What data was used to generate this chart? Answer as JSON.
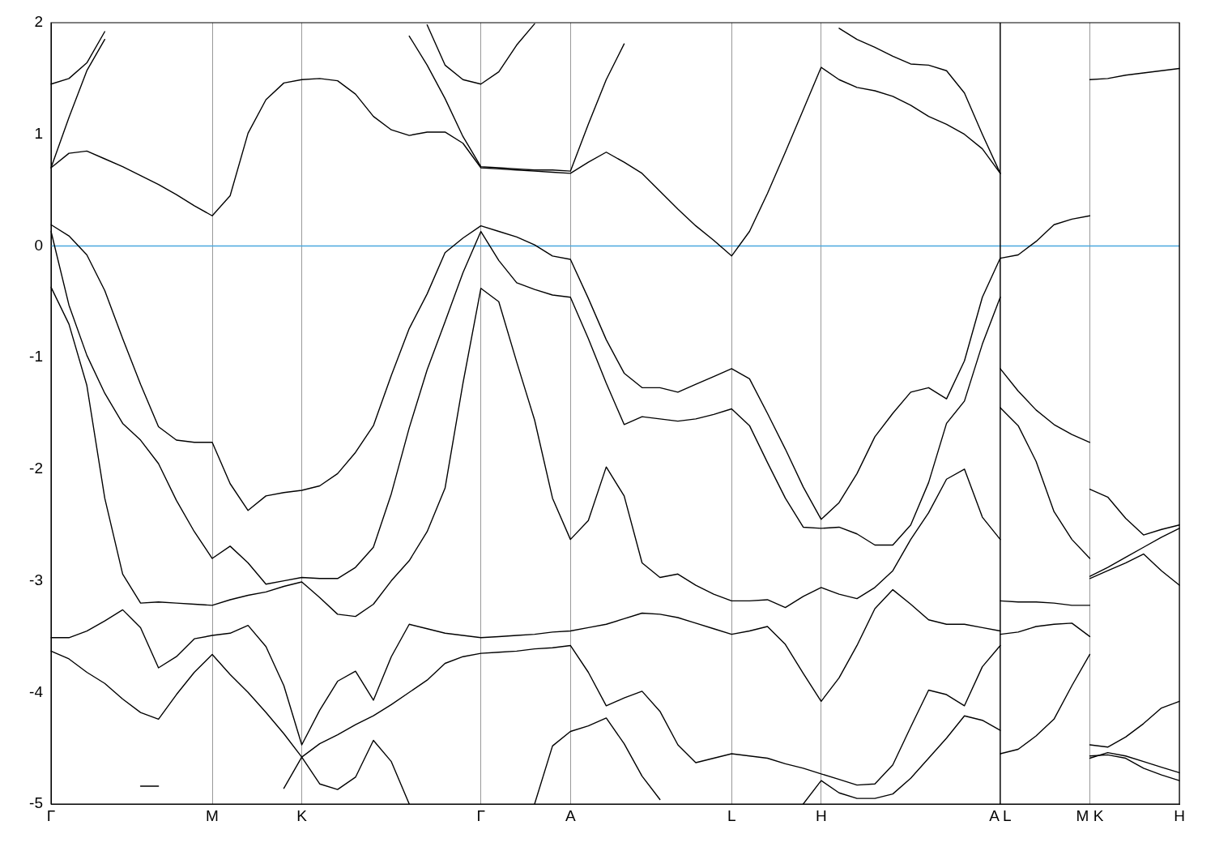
{
  "chart_data": {
    "type": "line",
    "marker": "none",
    "grid": "x",
    "categories": [
      "Γ",
      null,
      null,
      null,
      null,
      null,
      null,
      null,
      null,
      "M",
      null,
      null,
      null,
      null,
      "K",
      null,
      null,
      null,
      null,
      null,
      null,
      null,
      null,
      null,
      "Γ",
      null,
      null,
      null,
      null,
      "A",
      null,
      null,
      null,
      null,
      null,
      null,
      null,
      null,
      "L",
      null,
      null,
      null,
      null,
      "H",
      null,
      null,
      null,
      null,
      null,
      null,
      null,
      null,
      null,
      "A L",
      null,
      null,
      null,
      null,
      "M K",
      null,
      null,
      null,
      null,
      "H"
    ],
    "ylim": [
      -5,
      2
    ],
    "yticks": [
      -5,
      -4,
      -3,
      -2,
      -1,
      0,
      1,
      2
    ],
    "ref_lines": [
      {
        "axis": "y",
        "value": 0,
        "color": "#4aa8de"
      },
      {
        "axis": "x",
        "value": "A L",
        "color": "#000000"
      }
    ],
    "series": [
      {
        "color": "#000000",
        "values": [
          1.45,
          1.5,
          1.64,
          1.92,
          null,
          null,
          null,
          null,
          null,
          null,
          null,
          null,
          null,
          null,
          null,
          null,
          null,
          null,
          null,
          null,
          null,
          null,
          null,
          null,
          null,
          null,
          null,
          null,
          null,
          null,
          null,
          null,
          null,
          null,
          null,
          null,
          null,
          null,
          null,
          null,
          null,
          null,
          null,
          null,
          null,
          null,
          null,
          null,
          null,
          null,
          null,
          null,
          null,
          null,
          null,
          null,
          null,
          null,
          null,
          null,
          null,
          null,
          null,
          null
        ]
      },
      {
        "color": "#000000",
        "values": [
          0.7,
          1.15,
          1.57,
          1.85,
          null,
          null,
          null,
          null,
          null,
          null,
          null,
          null,
          null,
          null,
          null,
          null,
          null,
          null,
          null,
          null,
          null,
          null,
          null,
          null,
          null,
          null,
          null,
          null,
          null,
          null,
          null,
          null,
          null,
          null,
          null,
          null,
          null,
          null,
          null,
          null,
          null,
          null,
          null,
          null,
          null,
          null,
          null,
          null,
          null,
          null,
          null,
          null,
          null,
          null,
          null,
          null,
          null,
          null,
          null,
          null,
          null,
          null,
          null,
          null
        ]
      },
      {
        "color": "#000000",
        "values": [
          null,
          null,
          null,
          null,
          null,
          null,
          null,
          null,
          null,
          null,
          null,
          null,
          null,
          null,
          null,
          null,
          null,
          null,
          null,
          null,
          null,
          1.98,
          1.62,
          1.49,
          1.45,
          1.56,
          1.8,
          1.99,
          null,
          null,
          null,
          null,
          null,
          null,
          null,
          null,
          null,
          null,
          null,
          null,
          null,
          null,
          null,
          null,
          null,
          null,
          null,
          null,
          null,
          null,
          null,
          null,
          null,
          null,
          null,
          null,
          null,
          null,
          null,
          null,
          null,
          null,
          null,
          null
        ]
      },
      {
        "color": "#000000",
        "values": [
          0.7,
          0.83,
          0.85,
          0.78,
          0.71,
          0.63,
          0.55,
          0.46,
          0.36,
          0.27,
          0.45,
          1.01,
          1.31,
          1.46,
          1.49,
          1.5,
          1.48,
          1.36,
          1.16,
          1.04,
          0.99,
          1.02,
          1.02,
          0.92,
          0.7,
          0.69,
          0.68,
          0.67,
          0.66,
          0.65,
          0.75,
          0.84,
          0.75,
          0.65,
          0.49,
          0.33,
          0.18,
          0.05,
          -0.09,
          0.13,
          0.47,
          0.84,
          1.22,
          1.6,
          1.49,
          1.42,
          1.39,
          1.34,
          1.26,
          1.16,
          1.09,
          1.0,
          0.87,
          0.65,
          null,
          null,
          null,
          null,
          null,
          null,
          null,
          null,
          null,
          null
        ]
      },
      {
        "color": "#000000",
        "values": [
          null,
          null,
          null,
          null,
          null,
          null,
          null,
          null,
          null,
          null,
          null,
          null,
          null,
          null,
          null,
          null,
          null,
          null,
          null,
          null,
          1.88,
          1.62,
          1.32,
          0.98,
          0.71,
          0.7,
          0.69,
          0.68,
          0.68,
          0.67,
          1.09,
          1.49,
          1.81,
          null,
          null,
          null,
          null,
          null,
          null,
          null,
          null,
          null,
          null,
          null,
          null,
          null,
          null,
          null,
          null,
          null,
          null,
          null,
          null,
          null,
          null,
          null,
          null,
          null,
          null,
          null,
          null,
          null,
          null,
          null
        ]
      },
      {
        "color": "#000000",
        "values": [
          null,
          null,
          null,
          null,
          null,
          null,
          null,
          null,
          null,
          null,
          null,
          null,
          null,
          null,
          null,
          null,
          null,
          null,
          null,
          null,
          null,
          null,
          null,
          null,
          null,
          null,
          null,
          null,
          null,
          null,
          null,
          null,
          null,
          null,
          null,
          null,
          null,
          null,
          null,
          null,
          null,
          null,
          null,
          null,
          1.95,
          1.85,
          1.78,
          1.7,
          1.63,
          1.62,
          1.57,
          1.37,
          1.0,
          0.65,
          null,
          null,
          null,
          null,
          null,
          null,
          null,
          null,
          null,
          null
        ]
      },
      {
        "color": "#000000",
        "values": [
          0.19,
          0.09,
          -0.08,
          -0.4,
          -0.83,
          -1.24,
          -1.62,
          -1.74,
          -1.76,
          -1.76,
          -2.13,
          -2.37,
          -2.24,
          -2.21,
          -2.19,
          -2.15,
          -2.04,
          -1.85,
          -1.61,
          -1.16,
          -0.74,
          -0.43,
          -0.06,
          0.07,
          0.18,
          0.13,
          0.08,
          0.01,
          -0.09,
          -0.12,
          -0.47,
          -0.84,
          -1.14,
          -1.27,
          -1.27,
          -1.31,
          -1.24,
          -1.17,
          -1.1,
          -1.19,
          -1.5,
          -1.82,
          -2.16,
          -2.45,
          -2.3,
          -2.04,
          -1.71,
          -1.5,
          -1.31,
          -1.27,
          -1.37,
          -1.03,
          -0.46,
          -0.11,
          null,
          null,
          null,
          null,
          null,
          null,
          null,
          null,
          null,
          null
        ]
      },
      {
        "color": "#000000",
        "values": [
          0.13,
          -0.53,
          -0.98,
          -1.32,
          -1.59,
          -1.74,
          -1.95,
          -2.28,
          -2.56,
          -2.8,
          -2.69,
          -2.84,
          -3.03,
          -3.0,
          -2.97,
          -2.98,
          -2.98,
          -2.88,
          -2.7,
          -2.22,
          -1.63,
          -1.11,
          -0.68,
          -0.24,
          0.13,
          -0.13,
          -0.33,
          -0.39,
          -0.44,
          -0.46,
          -0.83,
          -1.23,
          -1.6,
          -1.53,
          -1.55,
          -1.57,
          -1.55,
          -1.51,
          -1.46,
          -1.61,
          -1.94,
          -2.26,
          -2.52,
          -2.53,
          -2.52,
          -2.58,
          -2.68,
          -2.68,
          -2.5,
          -2.12,
          -1.59,
          -1.39,
          -0.88,
          -0.46,
          null,
          null,
          null,
          null,
          null,
          null,
          null,
          null,
          null,
          null
        ]
      },
      {
        "color": "#000000",
        "values": [
          -0.37,
          -0.7,
          -1.25,
          -2.26,
          -2.94,
          -3.2,
          -3.19,
          -3.2,
          -3.21,
          -3.22,
          -3.17,
          -3.13,
          -3.1,
          -3.05,
          -3.01,
          -3.15,
          -3.3,
          -3.32,
          -3.21,
          -3.0,
          -2.82,
          -2.56,
          -2.17,
          -1.23,
          -0.38,
          -0.5,
          -1.04,
          -1.56,
          -2.26,
          -2.63,
          -2.46,
          -1.98,
          -2.24,
          -2.84,
          -2.97,
          -2.94,
          -3.04,
          -3.12,
          -3.18,
          -3.18,
          -3.17,
          -3.24,
          -3.14,
          -3.06,
          -3.12,
          -3.16,
          -3.06,
          -2.91,
          -2.63,
          -2.39,
          -2.09,
          -2.0,
          -2.43,
          -2.63,
          null,
          null,
          null,
          null,
          null,
          null,
          null,
          null,
          null,
          null
        ]
      },
      {
        "color": "#000000",
        "values": [
          -3.51,
          -3.51,
          -3.45,
          -3.36,
          -3.26,
          -3.42,
          -3.78,
          -3.68,
          -3.52,
          -3.49,
          -3.47,
          -3.4,
          -3.59,
          -3.94,
          -4.47,
          -4.16,
          -3.9,
          -3.81,
          -4.07,
          -3.68,
          -3.39,
          -3.43,
          -3.47,
          -3.49,
          -3.51,
          -3.5,
          -3.49,
          -3.48,
          -3.46,
          -3.45,
          -3.42,
          -3.39,
          -3.34,
          -3.29,
          -3.3,
          -3.33,
          -3.38,
          -3.43,
          -3.48,
          -3.45,
          -3.41,
          -3.57,
          -3.83,
          -4.08,
          -3.87,
          -3.58,
          -3.25,
          -3.08,
          -3.21,
          -3.35,
          -3.39,
          -3.39,
          -3.42,
          -3.45,
          null,
          null,
          null,
          null,
          null,
          null,
          null,
          null,
          null,
          null
        ]
      },
      {
        "color": "#000000",
        "values": [
          -3.63,
          -3.7,
          -3.82,
          -3.92,
          -4.06,
          -4.18,
          -4.24,
          -4.02,
          -3.82,
          -3.66,
          -3.84,
          -4.0,
          -4.18,
          -4.37,
          -4.58,
          -4.46,
          -4.38,
          -4.29,
          -4.21,
          -4.11,
          -4.0,
          -3.89,
          -3.74,
          -3.68,
          -3.65,
          -3.64,
          -3.63,
          -3.61,
          -3.6,
          -3.58,
          -3.82,
          -4.12,
          -4.05,
          -3.99,
          -4.17,
          -4.47,
          -4.63,
          -4.59,
          -4.55,
          -4.57,
          -4.59,
          -4.64,
          -4.68,
          -4.73,
          -4.78,
          -4.83,
          -4.82,
          -4.65,
          -4.31,
          -3.98,
          -4.02,
          -4.12,
          -3.77,
          -3.58,
          null,
          null,
          null,
          null,
          null,
          null,
          null,
          null,
          null,
          null
        ]
      },
      {
        "color": "#000000",
        "values": [
          null,
          null,
          null,
          null,
          null,
          null,
          null,
          null,
          null,
          null,
          null,
          null,
          null,
          null,
          null,
          null,
          null,
          null,
          null,
          null,
          null,
          null,
          null,
          null,
          null,
          null,
          null,
          -5.0,
          -4.48,
          -4.35,
          -4.3,
          -4.23,
          -4.46,
          -4.75,
          -4.96,
          null,
          null,
          null,
          null,
          null,
          null,
          null,
          null,
          null,
          null,
          null,
          null,
          null,
          null,
          null,
          null,
          null,
          null,
          null,
          null,
          null,
          null,
          null,
          null,
          null,
          null,
          null,
          null,
          null
        ]
      },
      {
        "color": "#000000",
        "values": [
          null,
          null,
          null,
          null,
          null,
          null,
          null,
          null,
          null,
          null,
          null,
          null,
          null,
          -4.86,
          -4.58,
          -4.82,
          -4.87,
          -4.76,
          -4.43,
          -4.62,
          -5.0,
          null,
          null,
          null,
          null,
          null,
          null,
          null,
          null,
          null,
          null,
          null,
          null,
          null,
          null,
          null,
          null,
          null,
          null,
          null,
          null,
          null,
          null,
          null,
          null,
          null,
          null,
          null,
          null,
          null,
          null,
          null,
          null,
          null,
          null,
          null,
          null,
          null,
          null,
          null,
          null,
          null,
          null,
          null
        ]
      },
      {
        "color": "#000000",
        "values": [
          null,
          null,
          null,
          null,
          null,
          -4.84,
          -4.84,
          null,
          null,
          null,
          null,
          null,
          null,
          null,
          null,
          null,
          null,
          null,
          null,
          null,
          null,
          null,
          null,
          null,
          null,
          null,
          null,
          null,
          null,
          null,
          null,
          null,
          null,
          null,
          null,
          null,
          null,
          null,
          null,
          null,
          null,
          null,
          null,
          null,
          null,
          null,
          null,
          null,
          null,
          null,
          null,
          null,
          null,
          null,
          null,
          null,
          null,
          null,
          null,
          null,
          null,
          null,
          null,
          null
        ]
      },
      {
        "color": "#000000",
        "values": [
          null,
          null,
          null,
          null,
          null,
          null,
          null,
          null,
          null,
          null,
          null,
          null,
          null,
          null,
          null,
          null,
          null,
          null,
          null,
          null,
          null,
          null,
          null,
          null,
          null,
          null,
          null,
          null,
          null,
          null,
          null,
          null,
          null,
          null,
          null,
          null,
          null,
          null,
          null,
          null,
          null,
          null,
          -5.0,
          -4.79,
          -4.9,
          -4.95,
          -4.95,
          -4.91,
          -4.77,
          -4.59,
          -4.41,
          -4.21,
          -4.25,
          -4.34,
          null,
          null,
          null,
          null,
          null,
          null,
          null,
          null,
          null,
          null
        ]
      },
      {
        "color": "#000000",
        "values": [
          null,
          null,
          null,
          null,
          null,
          null,
          null,
          null,
          null,
          null,
          null,
          null,
          null,
          null,
          null,
          null,
          null,
          null,
          null,
          null,
          null,
          null,
          null,
          null,
          null,
          null,
          null,
          null,
          null,
          null,
          null,
          null,
          null,
          null,
          null,
          null,
          null,
          null,
          null,
          null,
          null,
          null,
          null,
          null,
          null,
          null,
          null,
          null,
          null,
          null,
          null,
          null,
          null,
          -0.11,
          -0.08,
          0.04,
          0.19,
          0.24,
          0.27,
          null,
          null,
          null,
          null,
          null
        ]
      },
      {
        "color": "#000000",
        "values": [
          null,
          null,
          null,
          null,
          null,
          null,
          null,
          null,
          null,
          null,
          null,
          null,
          null,
          null,
          null,
          null,
          null,
          null,
          null,
          null,
          null,
          null,
          null,
          null,
          null,
          null,
          null,
          null,
          null,
          null,
          null,
          null,
          null,
          null,
          null,
          null,
          null,
          null,
          null,
          null,
          null,
          null,
          null,
          null,
          null,
          null,
          null,
          null,
          null,
          null,
          null,
          null,
          null,
          -1.1,
          -1.3,
          -1.47,
          -1.6,
          -1.69,
          -1.76,
          null,
          null,
          null,
          null,
          null
        ]
      },
      {
        "color": "#000000",
        "values": [
          null,
          null,
          null,
          null,
          null,
          null,
          null,
          null,
          null,
          null,
          null,
          null,
          null,
          null,
          null,
          null,
          null,
          null,
          null,
          null,
          null,
          null,
          null,
          null,
          null,
          null,
          null,
          null,
          null,
          null,
          null,
          null,
          null,
          null,
          null,
          null,
          null,
          null,
          null,
          null,
          null,
          null,
          null,
          null,
          null,
          null,
          null,
          null,
          null,
          null,
          null,
          null,
          null,
          -1.45,
          -1.61,
          -1.93,
          -2.38,
          -2.63,
          -2.8,
          null,
          null,
          null,
          null,
          null
        ]
      },
      {
        "color": "#000000",
        "values": [
          null,
          null,
          null,
          null,
          null,
          null,
          null,
          null,
          null,
          null,
          null,
          null,
          null,
          null,
          null,
          null,
          null,
          null,
          null,
          null,
          null,
          null,
          null,
          null,
          null,
          null,
          null,
          null,
          null,
          null,
          null,
          null,
          null,
          null,
          null,
          null,
          null,
          null,
          null,
          null,
          null,
          null,
          null,
          null,
          null,
          null,
          null,
          null,
          null,
          null,
          null,
          null,
          null,
          -3.18,
          -3.19,
          -3.19,
          -3.2,
          -3.22,
          -3.22,
          null,
          null,
          null,
          null,
          null
        ]
      },
      {
        "color": "#000000",
        "values": [
          null,
          null,
          null,
          null,
          null,
          null,
          null,
          null,
          null,
          null,
          null,
          null,
          null,
          null,
          null,
          null,
          null,
          null,
          null,
          null,
          null,
          null,
          null,
          null,
          null,
          null,
          null,
          null,
          null,
          null,
          null,
          null,
          null,
          null,
          null,
          null,
          null,
          null,
          null,
          null,
          null,
          null,
          null,
          null,
          null,
          null,
          null,
          null,
          null,
          null,
          null,
          null,
          null,
          -3.48,
          -3.46,
          -3.41,
          -3.39,
          -3.38,
          -3.5,
          null,
          null,
          null,
          null,
          null
        ]
      },
      {
        "color": "#000000",
        "values": [
          null,
          null,
          null,
          null,
          null,
          null,
          null,
          null,
          null,
          null,
          null,
          null,
          null,
          null,
          null,
          null,
          null,
          null,
          null,
          null,
          null,
          null,
          null,
          null,
          null,
          null,
          null,
          null,
          null,
          null,
          null,
          null,
          null,
          null,
          null,
          null,
          null,
          null,
          null,
          null,
          null,
          null,
          null,
          null,
          null,
          null,
          null,
          null,
          null,
          null,
          null,
          null,
          null,
          -4.55,
          -4.51,
          -4.39,
          -4.24,
          -3.94,
          -3.66,
          null,
          null,
          null,
          null,
          null
        ]
      },
      {
        "color": "#000000",
        "values": [
          null,
          null,
          null,
          null,
          null,
          null,
          null,
          null,
          null,
          null,
          null,
          null,
          null,
          null,
          null,
          null,
          null,
          null,
          null,
          null,
          null,
          null,
          null,
          null,
          null,
          null,
          null,
          null,
          null,
          null,
          null,
          null,
          null,
          null,
          null,
          null,
          null,
          null,
          null,
          null,
          null,
          null,
          null,
          null,
          null,
          null,
          null,
          null,
          null,
          null,
          null,
          null,
          null,
          null,
          null,
          null,
          null,
          null,
          1.49,
          1.5,
          1.53,
          1.55,
          1.57,
          1.59
        ]
      },
      {
        "color": "#000000",
        "values": [
          null,
          null,
          null,
          null,
          null,
          null,
          null,
          null,
          null,
          null,
          null,
          null,
          null,
          null,
          null,
          null,
          null,
          null,
          null,
          null,
          null,
          null,
          null,
          null,
          null,
          null,
          null,
          null,
          null,
          null,
          null,
          null,
          null,
          null,
          null,
          null,
          null,
          null,
          null,
          null,
          null,
          null,
          null,
          null,
          null,
          null,
          null,
          null,
          null,
          null,
          null,
          null,
          null,
          null,
          null,
          null,
          null,
          null,
          -2.18,
          -2.25,
          -2.44,
          -2.59,
          -2.54,
          -2.5
        ]
      },
      {
        "color": "#000000",
        "values": [
          null,
          null,
          null,
          null,
          null,
          null,
          null,
          null,
          null,
          null,
          null,
          null,
          null,
          null,
          null,
          null,
          null,
          null,
          null,
          null,
          null,
          null,
          null,
          null,
          null,
          null,
          null,
          null,
          null,
          null,
          null,
          null,
          null,
          null,
          null,
          null,
          null,
          null,
          null,
          null,
          null,
          null,
          null,
          null,
          null,
          null,
          null,
          null,
          null,
          null,
          null,
          null,
          null,
          null,
          null,
          null,
          null,
          null,
          -2.98,
          -2.91,
          -2.84,
          -2.76,
          -2.91,
          -3.04
        ]
      },
      {
        "color": "#000000",
        "values": [
          null,
          null,
          null,
          null,
          null,
          null,
          null,
          null,
          null,
          null,
          null,
          null,
          null,
          null,
          null,
          null,
          null,
          null,
          null,
          null,
          null,
          null,
          null,
          null,
          null,
          null,
          null,
          null,
          null,
          null,
          null,
          null,
          null,
          null,
          null,
          null,
          null,
          null,
          null,
          null,
          null,
          null,
          null,
          null,
          null,
          null,
          null,
          null,
          null,
          null,
          null,
          null,
          null,
          null,
          null,
          null,
          null,
          null,
          -2.96,
          -2.88,
          -2.79,
          -2.7,
          -2.61,
          -2.53
        ]
      },
      {
        "color": "#000000",
        "values": [
          null,
          null,
          null,
          null,
          null,
          null,
          null,
          null,
          null,
          null,
          null,
          null,
          null,
          null,
          null,
          null,
          null,
          null,
          null,
          null,
          null,
          null,
          null,
          null,
          null,
          null,
          null,
          null,
          null,
          null,
          null,
          null,
          null,
          null,
          null,
          null,
          null,
          null,
          null,
          null,
          null,
          null,
          null,
          null,
          null,
          null,
          null,
          null,
          null,
          null,
          null,
          null,
          null,
          null,
          null,
          null,
          null,
          null,
          -4.47,
          -4.49,
          -4.4,
          -4.28,
          -4.14,
          -4.08
        ]
      },
      {
        "color": "#000000",
        "values": [
          null,
          null,
          null,
          null,
          null,
          null,
          null,
          null,
          null,
          null,
          null,
          null,
          null,
          null,
          null,
          null,
          null,
          null,
          null,
          null,
          null,
          null,
          null,
          null,
          null,
          null,
          null,
          null,
          null,
          null,
          null,
          null,
          null,
          null,
          null,
          null,
          null,
          null,
          null,
          null,
          null,
          null,
          null,
          null,
          null,
          null,
          null,
          null,
          null,
          null,
          null,
          null,
          null,
          null,
          null,
          null,
          null,
          null,
          -4.59,
          -4.54,
          -4.57,
          -4.62,
          -4.67,
          -4.72
        ]
      },
      {
        "color": "#000000",
        "values": [
          null,
          null,
          null,
          null,
          null,
          null,
          null,
          null,
          null,
          null,
          null,
          null,
          null,
          null,
          null,
          null,
          null,
          null,
          null,
          null,
          null,
          null,
          null,
          null,
          null,
          null,
          null,
          null,
          null,
          null,
          null,
          null,
          null,
          null,
          null,
          null,
          null,
          null,
          null,
          null,
          null,
          null,
          null,
          null,
          null,
          null,
          null,
          null,
          null,
          null,
          null,
          null,
          null,
          null,
          null,
          null,
          null,
          null,
          -4.57,
          -4.56,
          -4.59,
          -4.68,
          -4.74,
          -4.79
        ]
      }
    ]
  }
}
